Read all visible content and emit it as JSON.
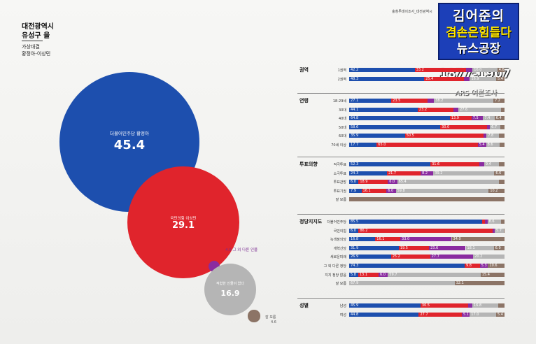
{
  "header": {
    "region_line1": "대전광역시",
    "region_line2": "유성구 을",
    "matchup_line1": "가상대결",
    "matchup_line2": "황정아-이상민"
  },
  "source": "충청투데이조사_대전광역시",
  "logo": {
    "line1": "김어준의",
    "line2": "겸손은힘들다",
    "line3": "뉴스공장"
  },
  "time": "1877-1907",
  "ars": "ARS 여론조사",
  "colors": {
    "dem": "#1d4fae",
    "ppp": "#e0242c",
    "other": "#8a2ba0",
    "none": "#b5b5b5",
    "unknown": "#8c7466"
  },
  "chart_data": [
    {
      "type": "bubble",
      "title": "가상대결 황정아-이상민",
      "items": [
        {
          "label": "더불어민주당 황정아",
          "value": 45.4,
          "value_text": "45.4",
          "color": "#1d4fae"
        },
        {
          "label": "국민의힘 이상민",
          "value": 29.1,
          "value_text": "29.1",
          "color": "#e0242c"
        },
        {
          "label": "4.0 그 외 다른 인물",
          "value": 4.0,
          "value_text": "",
          "color": "#8a2ba0"
        },
        {
          "label": "적합한 인물이 없다",
          "value": 16.9,
          "value_text": "16.9",
          "color": "#b5b5b5"
        },
        {
          "label": "잘 모름",
          "value": 4.6,
          "value_text": "4.6",
          "color": "#8c7466"
        }
      ]
    },
    {
      "type": "stacked_bar",
      "series_names": [
        "더불어민주당 황정아",
        "국민의힘 이상민",
        "그 외 다른 인물",
        "적합한 인물이 없다",
        "잘 모름"
      ],
      "groups": [
        {
          "name": "권역",
          "rows": [
            {
              "label": "1권역",
              "values": [
                42.2,
                33.2,
                4.0,
                16.0,
                4.6
              ]
            },
            {
              "label": "2권역",
              "values": [
                48.3,
                25.4,
                4.0,
                16.9,
                5.4
              ]
            }
          ]
        },
        {
          "name": "연령",
          "rows": [
            {
              "label": "18-29세",
              "values": [
                27.1,
                23.5,
                4.0,
                38.2,
                7.2
              ]
            },
            {
              "label": "30대",
              "values": [
                44.1,
                23.2,
                3.0,
                27.6,
                2.1
              ]
            },
            {
              "label": "40대",
              "values": [
                64.8,
                13.9,
                7.5,
                7.4,
                6.4
              ]
            },
            {
              "label": "50대",
              "values": [
                58.6,
                30.0,
                2.0,
                6.7,
                2.7
              ]
            },
            {
              "label": "60대",
              "values": [
                35.9,
                50.5,
                2.0,
                7.8,
                3.8
              ]
            },
            {
              "label": "70세 이상",
              "values": [
                17.7,
                65.0,
                5.4,
                8.6,
                3.3
              ]
            }
          ]
        },
        {
          "name": "투표의향",
          "rows": [
            {
              "label": "적극투표",
              "values": [
                52.3,
                31.6,
                3.0,
                9.4,
                3.7
              ]
            },
            {
              "label": "소극투표",
              "values": [
                24.3,
                21.7,
                8.2,
                39.2,
                6.6
              ]
            },
            {
              "label": "투표관망",
              "values": [
                6.0,
                18.9,
                6.0,
                65.4,
                3.7
              ]
            },
            {
              "label": "투표기권",
              "values": [
                7.9,
                16.1,
                6.0,
                59.8,
                10.2
              ]
            },
            {
              "label": "잘 모름",
              "values": [
                0.0,
                0.0,
                0.0,
                0.0,
                100.0
              ]
            }
          ]
        },
        {
          "name": "정당지지도",
          "rows": [
            {
              "label": "더불어민주당",
              "values": [
                85.5,
                2.0,
                1.5,
                8.6,
                2.4
              ]
            },
            {
              "label": "국민의힘",
              "values": [
                6.0,
                86.2,
                1.5,
                5.7,
                0.6
              ]
            },
            {
              "label": "녹색정의당",
              "values": [
                16.8,
                16.1,
                33.0,
                0.1,
                34.0
              ]
            },
            {
              "label": "개혁신당",
              "values": [
                31.9,
                19.5,
                23.6,
                18.1,
                6.9
              ]
            },
            {
              "label": "새로운미래",
              "values": [
                26.9,
                25.2,
                27.7,
                20.2,
                0.0
              ]
            },
            {
              "label": "그 외 다른 정당",
              "values": [
                74.3,
                9.8,
                5.3,
                0.0,
                10.6
              ]
            },
            {
              "label": "지지 정당 없음",
              "values": [
                5.8,
                13.1,
                6.0,
                59.7,
                15.4
              ]
            },
            {
              "label": "잘 모름",
              "values": [
                0.0,
                0.0,
                0.0,
                67.9,
                32.1
              ]
            }
          ]
        },
        {
          "name": "성별",
          "rows": [
            {
              "label": "남성",
              "values": [
                45.9,
                30.5,
                2.9,
                16.8,
                3.9
              ]
            },
            {
              "label": "여성",
              "values": [
                44.8,
                27.7,
                5.1,
                17.0,
                5.4
              ]
            }
          ]
        }
      ]
    }
  ]
}
